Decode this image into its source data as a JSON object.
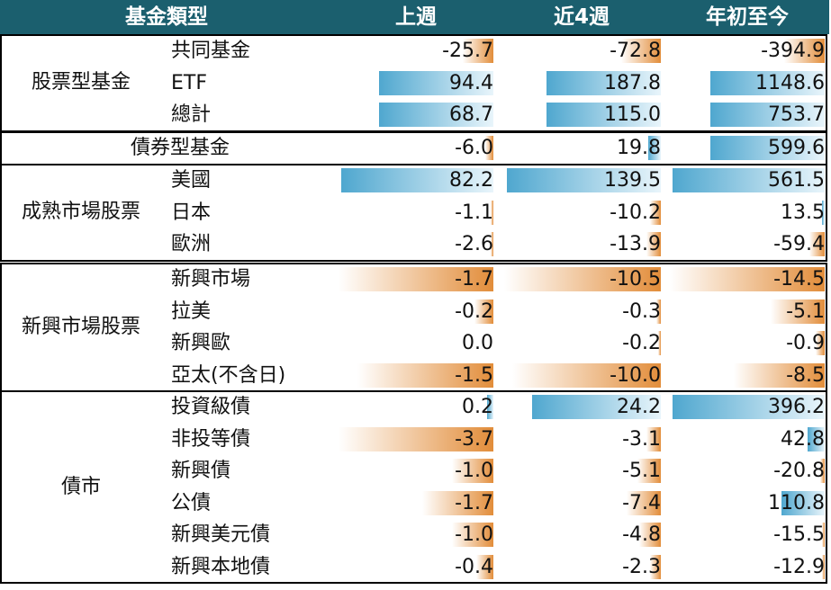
{
  "header": {
    "col_type": "基金類型",
    "col_week": "上週",
    "col_4w": "近4週",
    "col_ytd": "年初至今"
  },
  "groups": [
    {
      "label": "股票型基金",
      "rows": [
        {
          "name": "共同基金",
          "week": "-25.7",
          "w4": "-72.8",
          "ytd": "-394.9",
          "bars": [
            -0.2,
            -0.25,
            -0.26
          ]
        },
        {
          "name": "ETF",
          "week": "94.4",
          "w4": "187.8",
          "ytd": "1148.6",
          "bars": [
            0.74,
            0.73,
            0.74
          ]
        },
        {
          "name": "總計",
          "week": "68.7",
          "w4": "115.0",
          "ytd": "753.7",
          "bars": [
            0.74,
            0.73,
            0.74
          ]
        }
      ]
    },
    {
      "label": "債券型基金",
      "rows": [
        {
          "name": "",
          "week": "-6.0",
          "w4": "19.8",
          "ytd": "599.6",
          "bars": [
            -0.05,
            0.08,
            0.74
          ]
        }
      ]
    },
    {
      "label": "成熟市場股票",
      "rows": [
        {
          "name": "美國",
          "week": "82.2",
          "w4": "139.5",
          "ytd": "561.5",
          "bars": [
            0.98,
            0.98,
            0.98
          ]
        },
        {
          "name": "日本",
          "week": "-1.1",
          "w4": "-10.2",
          "ytd": "13.5",
          "bars": [
            -0.01,
            -0.07,
            0.02
          ]
        },
        {
          "name": "歐洲",
          "week": "-2.6",
          "w4": "-13.9",
          "ytd": "-59.4",
          "bars": [
            -0.02,
            -0.09,
            -0.1
          ]
        }
      ]
    },
    {
      "label": "新興市場股票",
      "rows": [
        {
          "name": "新興市場",
          "week": "-1.7",
          "w4": "-10.5",
          "ytd": "-14.5",
          "bars": [
            -1.0,
            -1.0,
            -1.0
          ]
        },
        {
          "name": "拉美",
          "week": "-0.2",
          "w4": "-0.3",
          "ytd": "-5.1",
          "bars": [
            -0.12,
            -0.03,
            -0.35
          ]
        },
        {
          "name": "新興歐",
          "week": "0.0",
          "w4": "-0.2",
          "ytd": "-0.9",
          "bars": [
            0,
            -0.02,
            -0.06
          ]
        },
        {
          "name": "亞太(不含日)",
          "week": "-1.5",
          "w4": "-10.0",
          "ytd": "-8.5",
          "bars": [
            -0.88,
            -0.95,
            -0.59
          ]
        }
      ]
    },
    {
      "label": "債市",
      "rows": [
        {
          "name": "投資級債",
          "week": "0.2",
          "w4": "24.2",
          "ytd": "396.2",
          "bars": [
            0.04,
            0.82,
            0.98
          ]
        },
        {
          "name": "非投等債",
          "week": "-3.7",
          "w4": "-3.1",
          "ytd": "42.8",
          "bars": [
            -1.0,
            -0.09,
            0.11
          ]
        },
        {
          "name": "新興債",
          "week": "-1.0",
          "w4": "-5.1",
          "ytd": "-20.8",
          "bars": [
            -0.27,
            -0.15,
            -0.03
          ]
        },
        {
          "name": "公債",
          "week": "-1.7",
          "w4": "-7.4",
          "ytd": "110.8",
          "bars": [
            -0.46,
            -0.22,
            0.28
          ]
        },
        {
          "name": "新興美元債",
          "week": "-1.0",
          "w4": "-4.8",
          "ytd": "-15.5",
          "bars": [
            -0.27,
            -0.14,
            -0.02
          ]
        },
        {
          "name": "新興本地債",
          "week": "-0.4",
          "w4": "-2.3",
          "ytd": "-12.9",
          "bars": [
            -0.11,
            -0.07,
            -0.02
          ]
        }
      ]
    }
  ]
}
